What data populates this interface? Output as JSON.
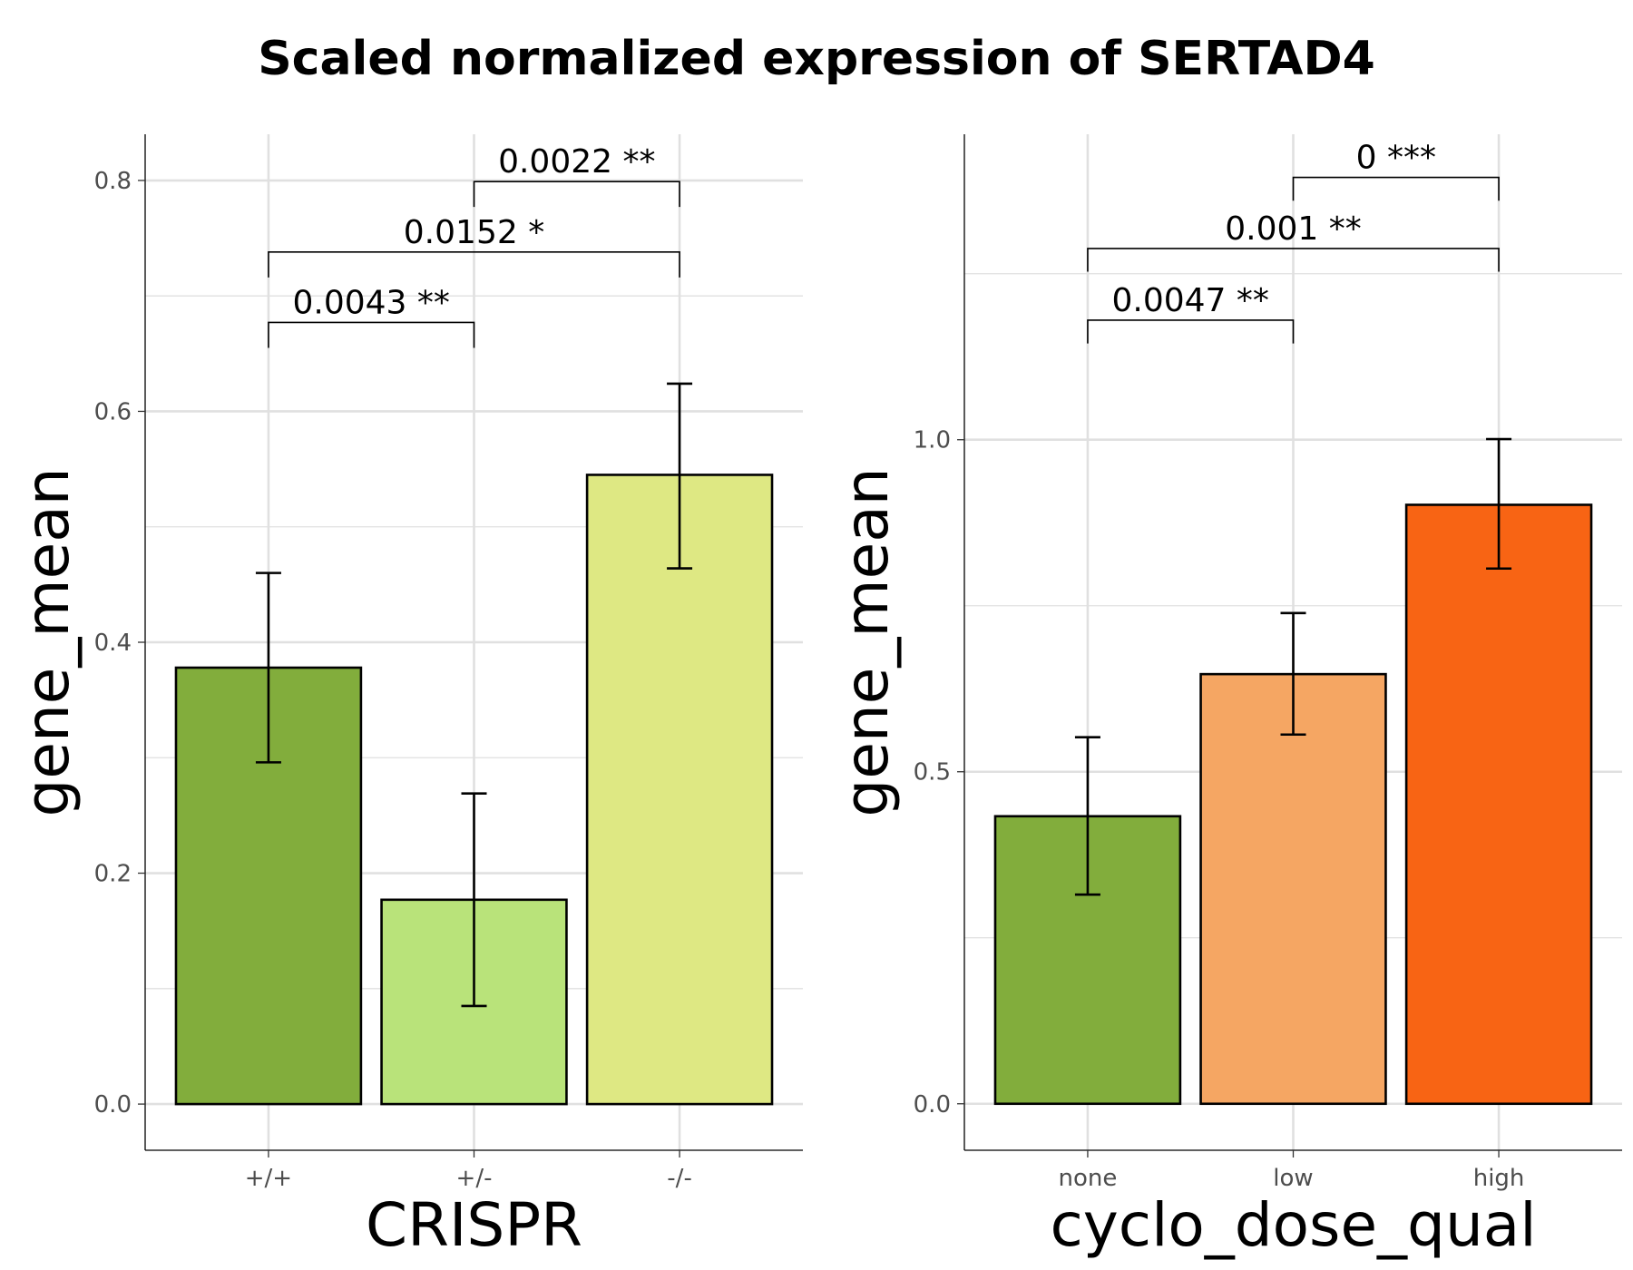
{
  "title": "Scaled normalized expression of SERTAD4",
  "chart_data": [
    {
      "type": "bar",
      "categories": [
        "+/+",
        "+/-",
        "-/-"
      ],
      "values": [
        0.378,
        0.177,
        0.545
      ],
      "error_low": [
        0.296,
        0.085,
        0.464
      ],
      "error_high": [
        0.46,
        0.269,
        0.624
      ],
      "colors": [
        "#82ad3c",
        "#b9e37a",
        "#dee883"
      ],
      "xlabel": "CRISPR",
      "ylabel": "gene_mean",
      "ylim": [
        -0.04,
        0.84
      ],
      "yticks": [
        0.0,
        0.2,
        0.4,
        0.6,
        0.8
      ],
      "ytick_labels": [
        "0.0",
        "0.2",
        "0.4",
        "0.6",
        "0.8"
      ],
      "grid": true,
      "comparisons": [
        {
          "from": 0,
          "to": 1,
          "y": 0.677,
          "drop": 0.022,
          "label": "0.0043 **"
        },
        {
          "from": 0,
          "to": 2,
          "y": 0.738,
          "drop": 0.022,
          "label": "0.0152 *"
        },
        {
          "from": 1,
          "to": 2,
          "y": 0.799,
          "drop": 0.022,
          "label": "0.0022 **"
        }
      ]
    },
    {
      "type": "bar",
      "categories": [
        "none",
        "low",
        "high"
      ],
      "values": [
        0.433,
        0.647,
        0.902
      ],
      "error_low": [
        0.315,
        0.556,
        0.806
      ],
      "error_high": [
        0.552,
        0.739,
        1.001
      ],
      "colors": [
        "#82ad3c",
        "#f5a663",
        "#f86414"
      ],
      "xlabel": "cyclo_dose_qual",
      "ylabel": "gene_mean",
      "ylim": [
        -0.07,
        1.46
      ],
      "yticks": [
        0.0,
        0.5,
        1.0
      ],
      "ytick_labels": [
        "0.0",
        "0.5",
        "1.0"
      ],
      "grid": true,
      "comparisons": [
        {
          "from": 0,
          "to": 1,
          "y": 1.18,
          "drop": 0.035,
          "label": "0.0047 **"
        },
        {
          "from": 0,
          "to": 2,
          "y": 1.288,
          "drop": 0.035,
          "label": "0.001 **"
        },
        {
          "from": 1,
          "to": 2,
          "y": 1.395,
          "drop": 0.035,
          "label": "0 ***"
        }
      ]
    }
  ]
}
